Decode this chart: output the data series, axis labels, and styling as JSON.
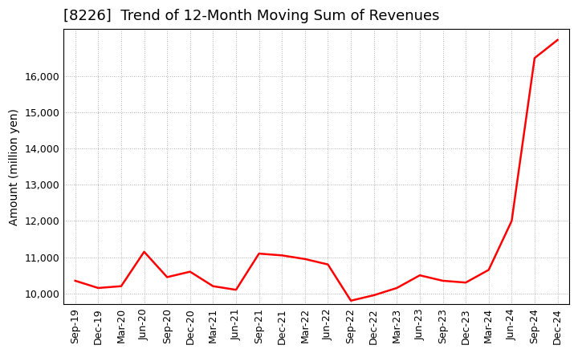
{
  "title": "[8226]  Trend of 12-Month Moving Sum of Revenues",
  "ylabel": "Amount (million yen)",
  "line_color": "#FF0000",
  "background_color": "#FFFFFF",
  "grid_color": "#999999",
  "x_labels": [
    "Sep-19",
    "Dec-19",
    "Mar-20",
    "Jun-20",
    "Sep-20",
    "Dec-20",
    "Mar-21",
    "Jun-21",
    "Sep-21",
    "Dec-21",
    "Mar-22",
    "Jun-22",
    "Sep-22",
    "Dec-22",
    "Mar-23",
    "Jun-23",
    "Sep-23",
    "Dec-23",
    "Mar-24",
    "Jun-24",
    "Sep-24",
    "Dec-24"
  ],
  "values": [
    10350,
    10150,
    10200,
    11150,
    10450,
    10600,
    10200,
    10100,
    11100,
    11050,
    10950,
    10800,
    9800,
    9950,
    10150,
    10500,
    10350,
    10300,
    10650,
    12000,
    16500,
    17000
  ],
  "ylim_min": 9700,
  "ylim_max": 17300,
  "ytick_values": [
    10000,
    11000,
    12000,
    13000,
    14000,
    15000,
    16000
  ],
  "title_fontsize": 13,
  "ylabel_fontsize": 10,
  "tick_fontsize": 9,
  "line_width": 1.8
}
